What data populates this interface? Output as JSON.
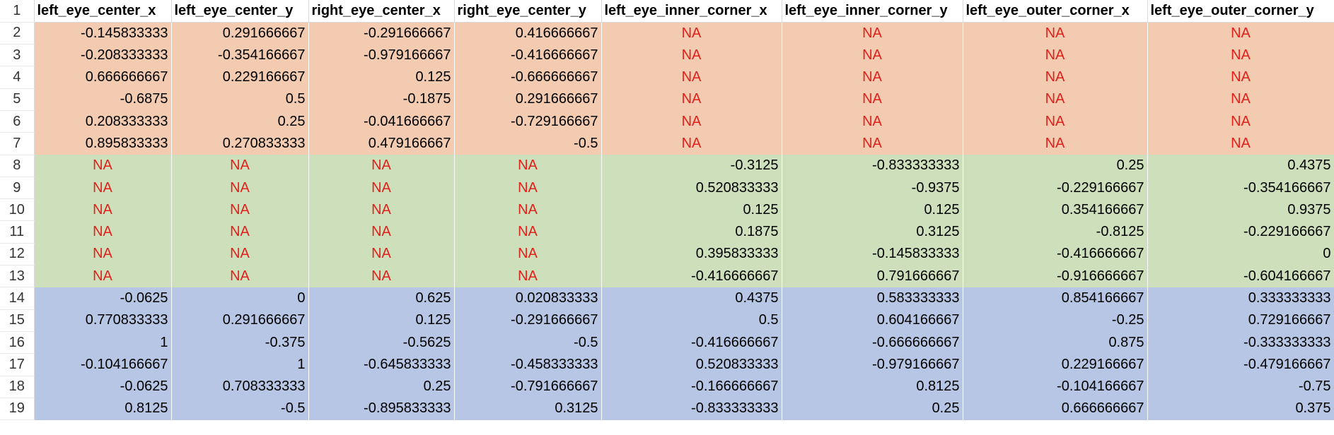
{
  "sheet": {
    "headers": [
      "left_eye_center_x",
      "left_eye_center_y",
      "right_eye_center_x",
      "right_eye_center_y",
      "left_eye_inner_corner_x",
      "left_eye_inner_corner_y",
      "left_eye_outer_corner_x",
      "left_eye_outer_corner_y"
    ],
    "header_row_number": "1",
    "group_colors": {
      "orange": "#f2cbb0",
      "green": "#cde0bb",
      "blue": "#b6c6e4",
      "na_text": "#e3201b"
    },
    "rows": [
      {
        "num": "2",
        "group": "orange",
        "cells": [
          "-0.145833333",
          "0.291666667",
          "-0.291666667",
          "0.416666667",
          "NA",
          "NA",
          "NA",
          "NA"
        ]
      },
      {
        "num": "3",
        "group": "orange",
        "cells": [
          "-0.208333333",
          "-0.354166667",
          "-0.979166667",
          "-0.416666667",
          "NA",
          "NA",
          "NA",
          "NA"
        ]
      },
      {
        "num": "4",
        "group": "orange",
        "cells": [
          "0.666666667",
          "0.229166667",
          "0.125",
          "-0.666666667",
          "NA",
          "NA",
          "NA",
          "NA"
        ]
      },
      {
        "num": "5",
        "group": "orange",
        "cells": [
          "-0.6875",
          "0.5",
          "-0.1875",
          "0.291666667",
          "NA",
          "NA",
          "NA",
          "NA"
        ]
      },
      {
        "num": "6",
        "group": "orange",
        "cells": [
          "0.208333333",
          "0.25",
          "-0.041666667",
          "-0.729166667",
          "NA",
          "NA",
          "NA",
          "NA"
        ]
      },
      {
        "num": "7",
        "group": "orange",
        "cells": [
          "0.895833333",
          "0.270833333",
          "0.479166667",
          "-0.5",
          "NA",
          "NA",
          "NA",
          "NA"
        ]
      },
      {
        "num": "8",
        "group": "green",
        "cells": [
          "NA",
          "NA",
          "NA",
          "NA",
          "-0.3125",
          "-0.833333333",
          "0.25",
          "0.4375"
        ]
      },
      {
        "num": "9",
        "group": "green",
        "cells": [
          "NA",
          "NA",
          "NA",
          "NA",
          "0.520833333",
          "-0.9375",
          "-0.229166667",
          "-0.354166667"
        ]
      },
      {
        "num": "10",
        "group": "green",
        "cells": [
          "NA",
          "NA",
          "NA",
          "NA",
          "0.125",
          "0.125",
          "0.354166667",
          "0.9375"
        ]
      },
      {
        "num": "11",
        "group": "green",
        "cells": [
          "NA",
          "NA",
          "NA",
          "NA",
          "0.1875",
          "0.3125",
          "-0.8125",
          "-0.229166667"
        ]
      },
      {
        "num": "12",
        "group": "green",
        "cells": [
          "NA",
          "NA",
          "NA",
          "NA",
          "0.395833333",
          "-0.145833333",
          "-0.416666667",
          "0"
        ]
      },
      {
        "num": "13",
        "group": "green",
        "cells": [
          "NA",
          "NA",
          "NA",
          "NA",
          "-0.416666667",
          "0.791666667",
          "-0.916666667",
          "-0.604166667"
        ]
      },
      {
        "num": "14",
        "group": "blue",
        "cells": [
          "-0.0625",
          "0",
          "0.625",
          "0.020833333",
          "0.4375",
          "0.583333333",
          "0.854166667",
          "0.333333333"
        ]
      },
      {
        "num": "15",
        "group": "blue",
        "cells": [
          "0.770833333",
          "0.291666667",
          "0.125",
          "-0.291666667",
          "0.5",
          "0.604166667",
          "-0.25",
          "0.729166667"
        ]
      },
      {
        "num": "16",
        "group": "blue",
        "cells": [
          "1",
          "-0.375",
          "-0.5625",
          "-0.5",
          "-0.416666667",
          "-0.666666667",
          "0.875",
          "-0.333333333"
        ]
      },
      {
        "num": "17",
        "group": "blue",
        "cells": [
          "-0.104166667",
          "1",
          "-0.645833333",
          "-0.458333333",
          "0.520833333",
          "-0.979166667",
          "0.229166667",
          "-0.479166667"
        ]
      },
      {
        "num": "18",
        "group": "blue",
        "cells": [
          "-0.0625",
          "0.708333333",
          "0.25",
          "-0.791666667",
          "-0.166666667",
          "0.8125",
          "-0.104166667",
          "-0.75"
        ]
      },
      {
        "num": "19",
        "group": "blue",
        "cells": [
          "0.8125",
          "-0.5",
          "-0.895833333",
          "0.3125",
          "-0.833333333",
          "0.25",
          "0.666666667",
          "0.375"
        ]
      }
    ]
  }
}
